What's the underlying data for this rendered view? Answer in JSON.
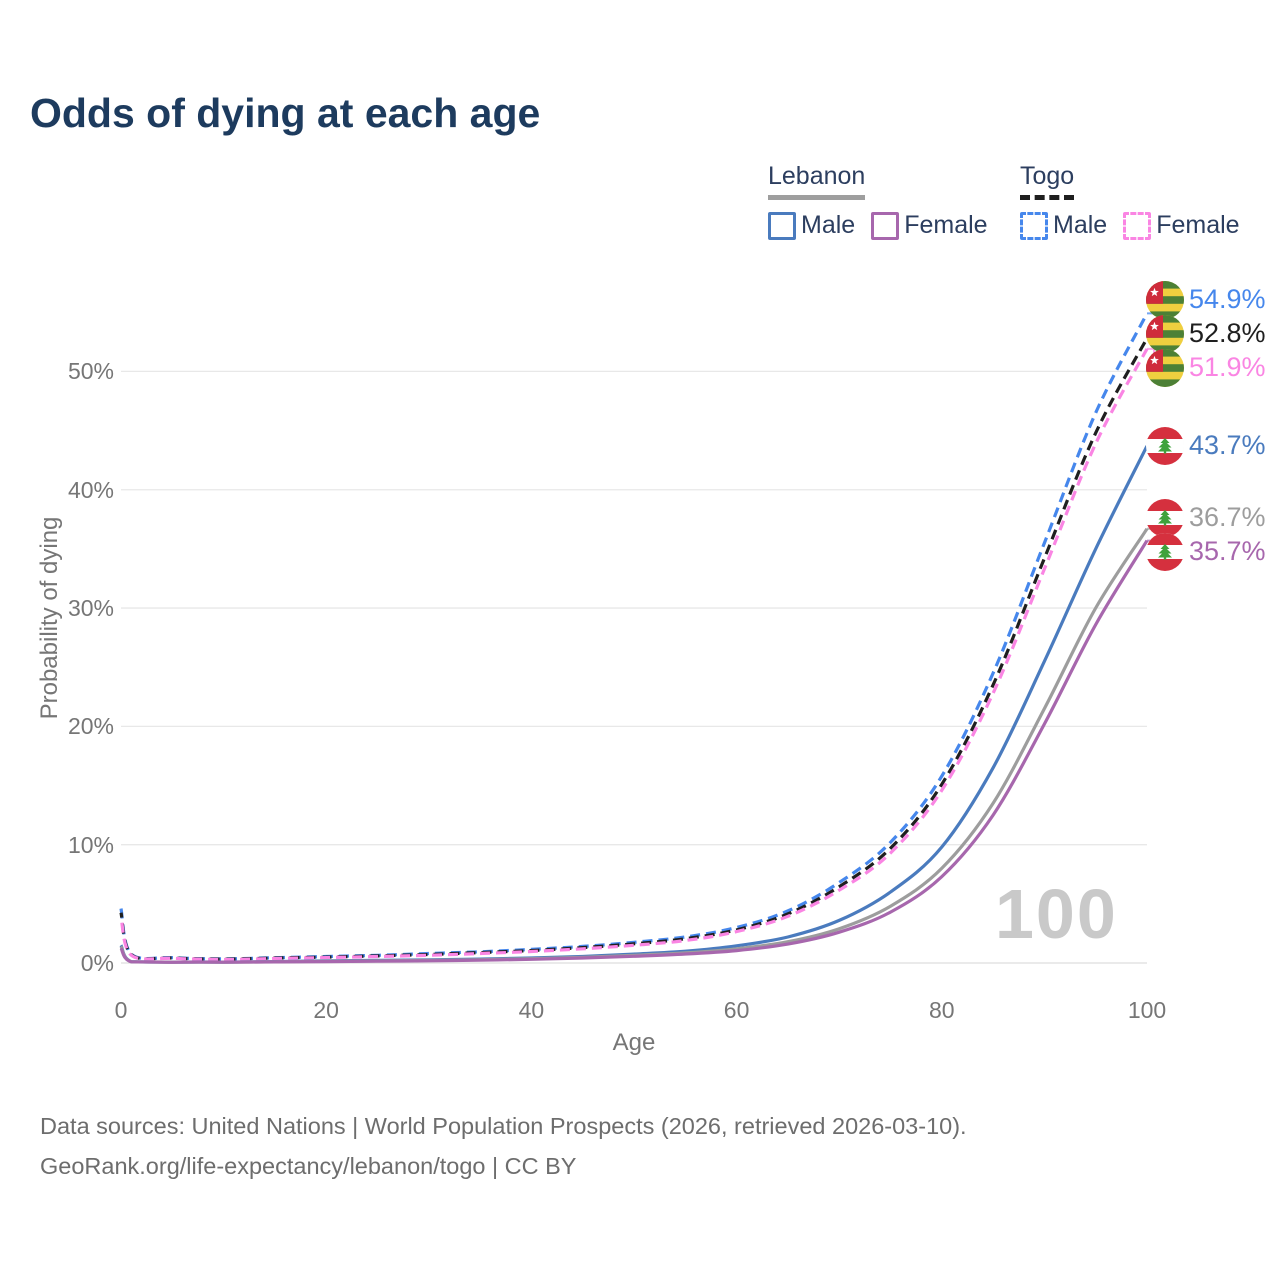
{
  "title": "Odds of dying at each age",
  "watermark": "100",
  "footer": {
    "line1": "Data sources: United Nations | World Population Prospects (2026, retrieved 2026-03-10).",
    "line2": "GeoRank.org/life-expectancy/lebanon/togo | CC BY"
  },
  "legend": {
    "groups": [
      {
        "name": "Lebanon",
        "line_style": "solid",
        "underline_color": "#9e9e9e",
        "items": [
          {
            "label": "Male",
            "color": "#4a7bbe",
            "dashed": false
          },
          {
            "label": "Female",
            "color": "#a767ad",
            "dashed": false
          }
        ]
      },
      {
        "name": "Togo",
        "line_style": "dashed",
        "underline_color": "#1f1f1f",
        "items": [
          {
            "label": "Male",
            "color": "#4687ec",
            "dashed": true
          },
          {
            "label": "Female",
            "color": "#fa85e3",
            "dashed": true
          }
        ]
      }
    ]
  },
  "chart_data": {
    "type": "line",
    "title": "Odds of dying at each age",
    "xlabel": "Age",
    "ylabel": "Probability of dying",
    "xlim": [
      0,
      100
    ],
    "ylim": [
      0,
      56
    ],
    "grid": "horizontal",
    "legend_position": "top-right",
    "x_ticks": [
      0,
      20,
      40,
      60,
      80,
      100
    ],
    "y_ticks": [
      {
        "value": 0,
        "label": "0%"
      },
      {
        "value": 10,
        "label": "10%"
      },
      {
        "value": 20,
        "label": "20%"
      },
      {
        "value": 30,
        "label": "30%"
      },
      {
        "value": 40,
        "label": "40%"
      },
      {
        "value": 50,
        "label": "50%"
      }
    ],
    "x": [
      0,
      1,
      5,
      10,
      15,
      20,
      25,
      30,
      35,
      40,
      45,
      50,
      55,
      60,
      65,
      70,
      75,
      80,
      85,
      90,
      95,
      100
    ],
    "series": [
      {
        "name": "Togo Male",
        "country": "Togo",
        "sex": "Male",
        "color": "#4687ec",
        "dash": true,
        "end_value": 54.9,
        "end_label": "54.9%",
        "values": [
          4.6,
          0.75,
          0.45,
          0.35,
          0.45,
          0.55,
          0.65,
          0.8,
          0.95,
          1.15,
          1.4,
          1.75,
          2.2,
          3.0,
          4.4,
          6.8,
          10.2,
          15.8,
          24.5,
          35.5,
          46.5,
          54.9
        ]
      },
      {
        "name": "Togo Both sexes",
        "country": "Togo",
        "sex": "Both",
        "color": "#1f1f1f",
        "dash": true,
        "end_value": 52.8,
        "end_label": "52.8%",
        "values": [
          4.25,
          0.7,
          0.42,
          0.33,
          0.42,
          0.5,
          0.6,
          0.72,
          0.88,
          1.05,
          1.3,
          1.62,
          2.05,
          2.8,
          4.15,
          6.45,
          9.7,
          15.1,
          23.5,
          34.2,
          44.8,
          52.8
        ]
      },
      {
        "name": "Togo Female",
        "country": "Togo",
        "sex": "Female",
        "color": "#fa85e3",
        "dash": true,
        "end_value": 51.9,
        "end_label": "51.9%",
        "values": [
          3.9,
          0.65,
          0.4,
          0.3,
          0.38,
          0.46,
          0.55,
          0.65,
          0.8,
          0.97,
          1.2,
          1.5,
          1.9,
          2.65,
          3.95,
          6.15,
          9.3,
          14.6,
          22.8,
          33.3,
          43.9,
          51.9
        ]
      },
      {
        "name": "Lebanon Male",
        "country": "Lebanon",
        "sex": "Male",
        "color": "#4a7bbe",
        "dash": false,
        "end_value": 43.7,
        "end_label": "43.7%",
        "values": [
          1.5,
          0.12,
          0.07,
          0.08,
          0.12,
          0.18,
          0.22,
          0.27,
          0.33,
          0.42,
          0.55,
          0.75,
          1.0,
          1.45,
          2.2,
          3.6,
          6.0,
          9.8,
          16.5,
          25.5,
          35.0,
          43.7
        ]
      },
      {
        "name": "Lebanon Both sexes",
        "country": "Lebanon",
        "sex": "Both",
        "color": "#9d9d9d",
        "dash": false,
        "end_value": 36.7,
        "end_label": "36.7%",
        "values": [
          1.4,
          0.11,
          0.07,
          0.07,
          0.1,
          0.15,
          0.18,
          0.22,
          0.28,
          0.36,
          0.48,
          0.65,
          0.85,
          1.2,
          1.8,
          2.9,
          4.8,
          8.0,
          13.5,
          21.5,
          30.0,
          36.7
        ]
      },
      {
        "name": "Lebanon Female",
        "country": "Lebanon",
        "sex": "Female",
        "color": "#a767ad",
        "dash": false,
        "end_value": 35.7,
        "end_label": "35.7%",
        "values": [
          1.25,
          0.1,
          0.06,
          0.07,
          0.09,
          0.12,
          0.15,
          0.19,
          0.24,
          0.31,
          0.42,
          0.57,
          0.76,
          1.05,
          1.6,
          2.6,
          4.3,
          7.3,
          12.5,
          20.2,
          28.6,
          35.7
        ]
      }
    ]
  }
}
